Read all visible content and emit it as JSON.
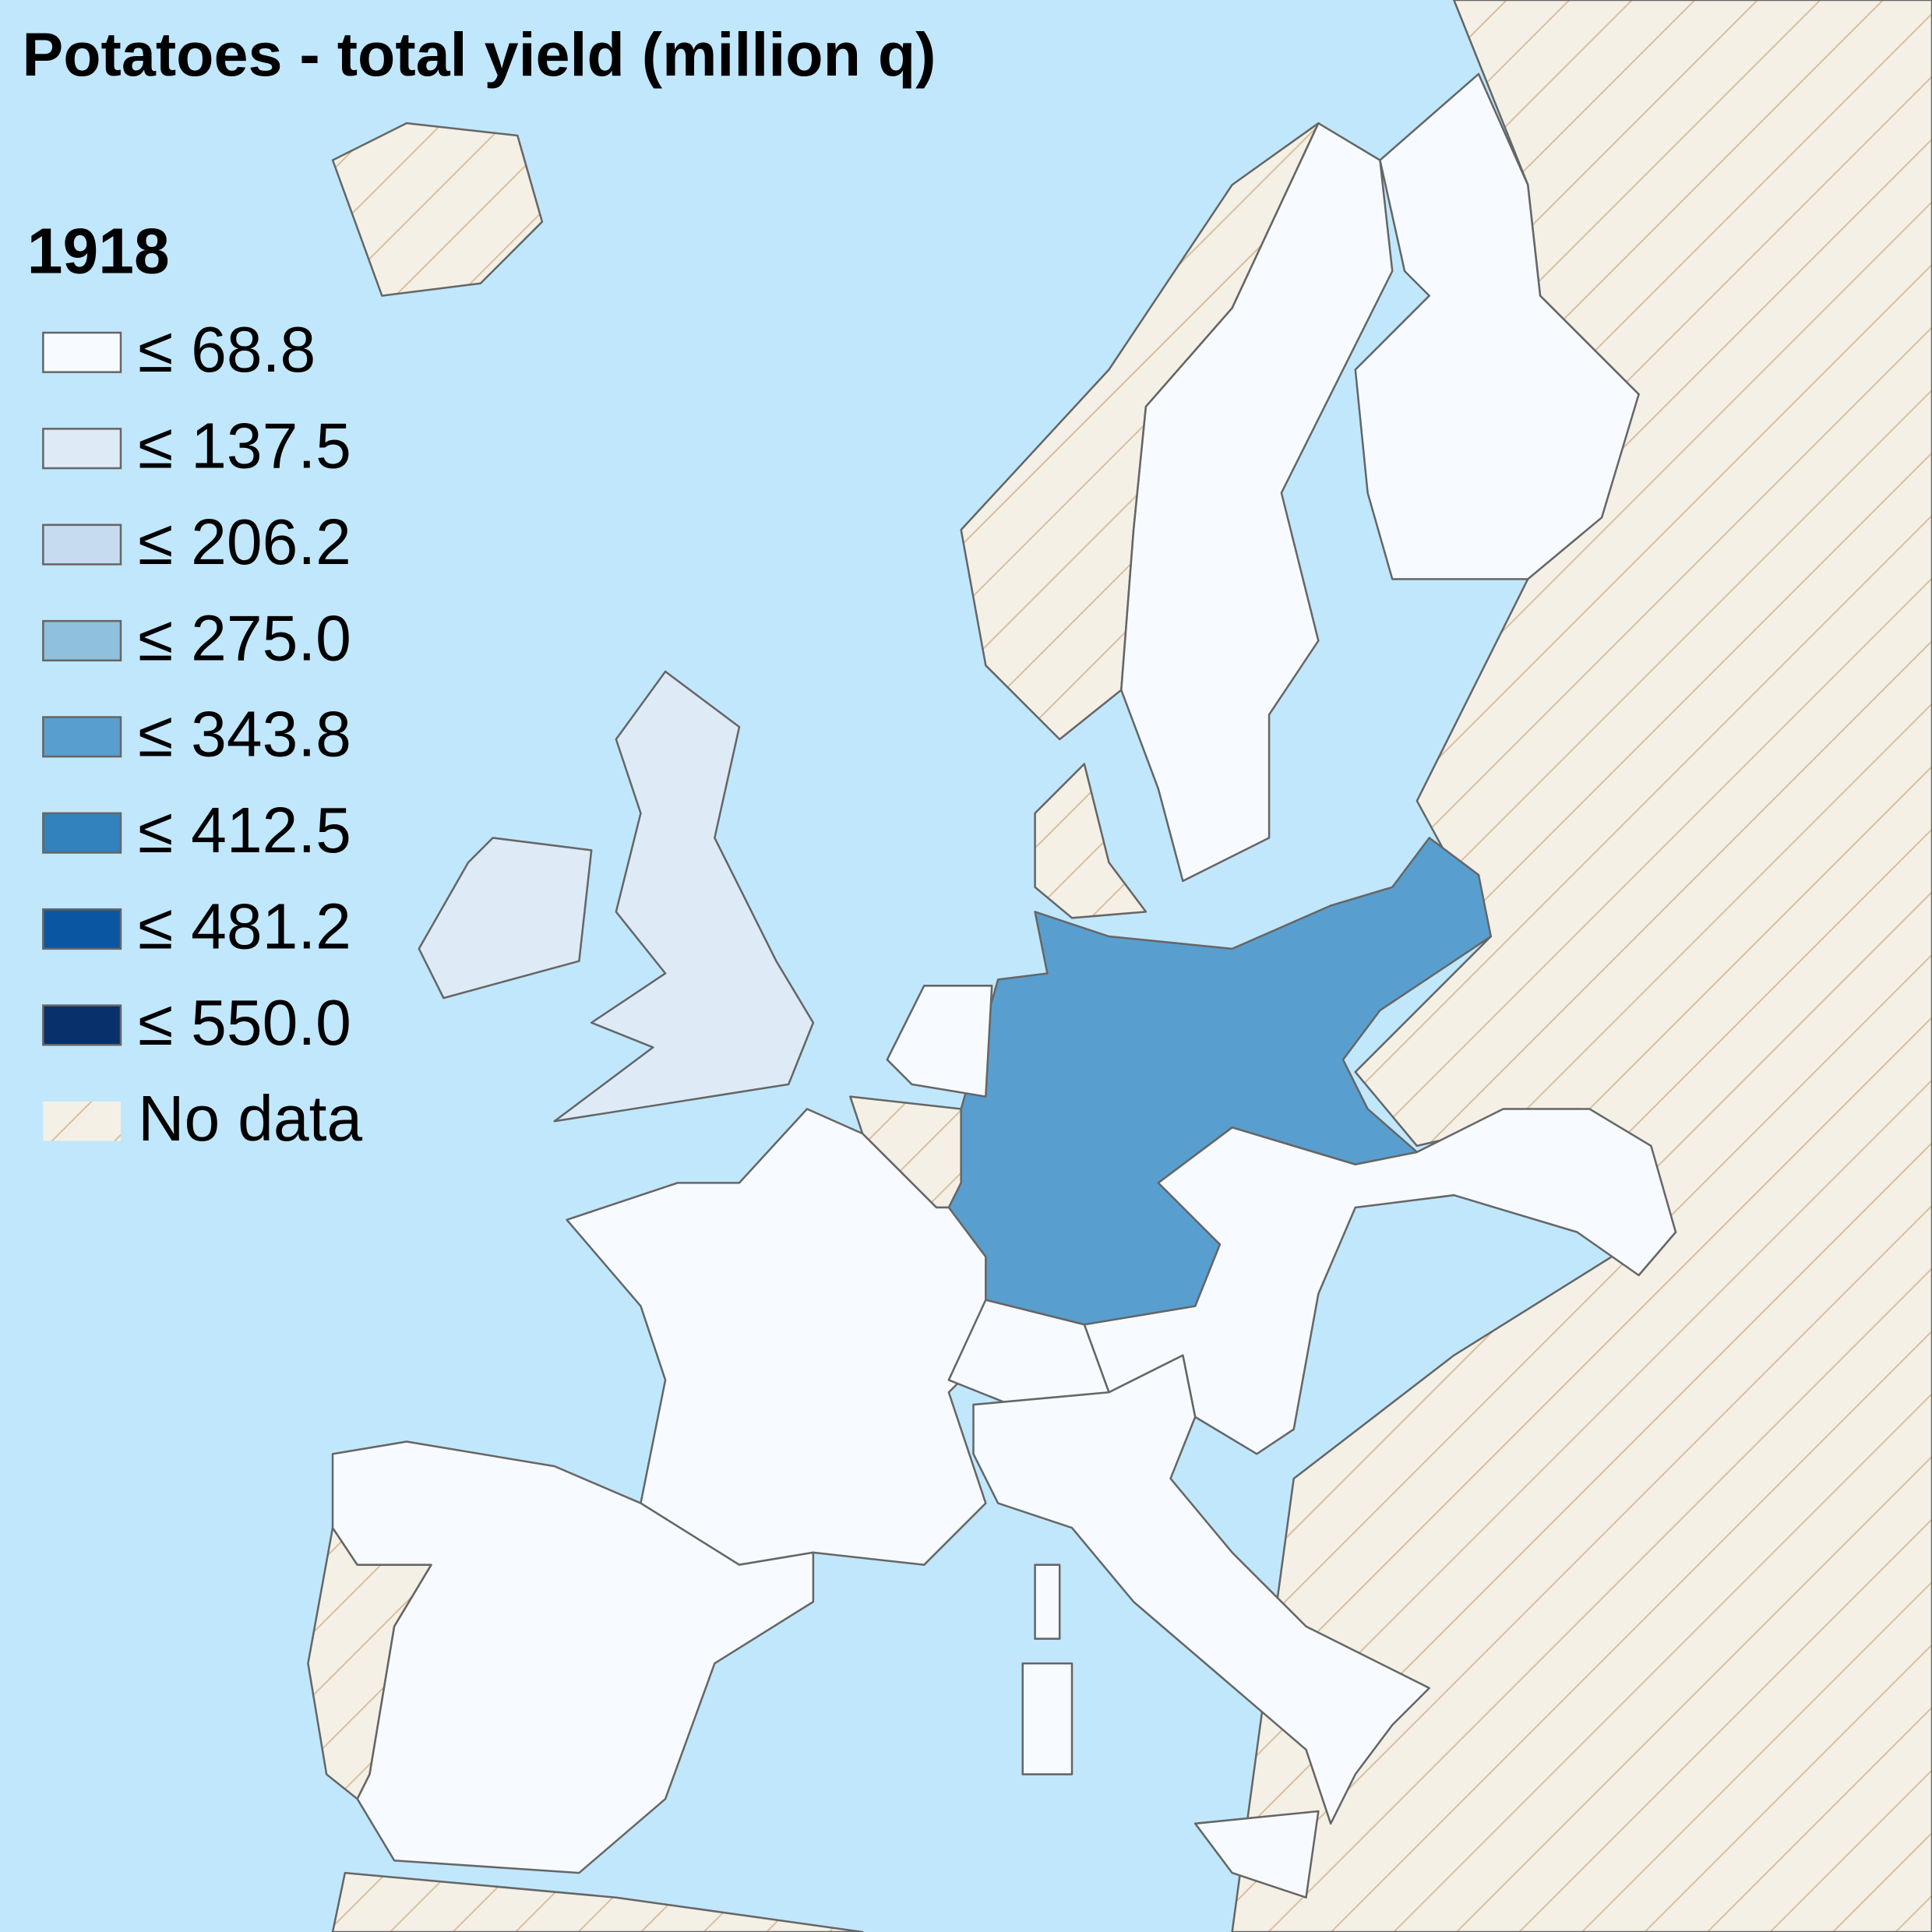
{
  "title": "Potatoes - total yield (million q)",
  "year": "1918",
  "legend": [
    {
      "label": "≤ 68.8",
      "color": "#f7fbff"
    },
    {
      "label": "≤ 137.5",
      "color": "#deebf7"
    },
    {
      "label": "≤ 206.2",
      "color": "#c6dbef"
    },
    {
      "label": "≤ 275.0",
      "color": "#8fc1de"
    },
    {
      "label": "≤ 343.8",
      "color": "#589fcf"
    },
    {
      "label": "≤ 412.5",
      "color": "#3182bd"
    },
    {
      "label": "≤ 481.2",
      "color": "#0b56a2"
    },
    {
      "label": "≤ 550.0",
      "color": "#08306b"
    }
  ],
  "no_data": {
    "label": "No data",
    "color": "#f5f0e6",
    "hatch": "#d8bfa0"
  },
  "sea": "#c1e7fc"
}
